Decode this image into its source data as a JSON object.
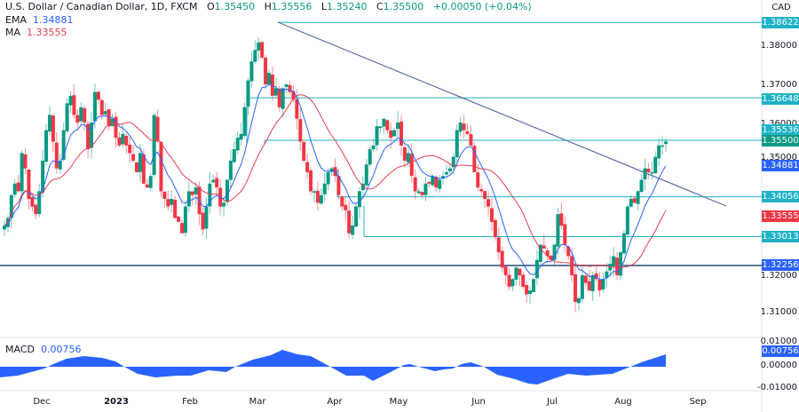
{
  "header": {
    "symbol": "U.S. Dollar / Canadian Dollar, 1D, FXCM",
    "open_label": "O",
    "open": "1.35450",
    "high_label": "H",
    "high": "1.35556",
    "low_label": "L",
    "low": "1.35240",
    "close_label": "C",
    "close": "1.35500",
    "change": "+0.00050 (+0.04%)"
  },
  "indicators": {
    "ema_label": "EMA",
    "ema_value": "1.34881",
    "ma_label": "MA",
    "ma_value": "1.33555",
    "macd_label": "MACD",
    "macd_value": "0.00756"
  },
  "currency": "CAD",
  "colors": {
    "up": "#089981",
    "down": "#f23645",
    "ema": "#2962ff",
    "ma": "#e04050",
    "level": "#1fb2c7",
    "support": "#5b7a99",
    "trendline": "#5b6ea0",
    "macd": "#2962ff",
    "close_tag": "#089981"
  },
  "price_axis": {
    "ticks": [
      "1.38000",
      "1.37000",
      "1.36000",
      "1.35000",
      "1.32000",
      "1.31000"
    ],
    "tags": [
      {
        "value": "1.38622",
        "color": "#1fb2c7"
      },
      {
        "value": "1.36648",
        "color": "#1fb2c7"
      },
      {
        "value": "1.35536",
        "color": "#1fb2c7"
      },
      {
        "value": "1.35500",
        "color": "#089981"
      },
      {
        "value": "1.34881",
        "color": "#2962ff"
      },
      {
        "value": "1.34056",
        "color": "#1fb2c7"
      },
      {
        "value": "1.33555",
        "color": "#f23645"
      },
      {
        "value": "1.33013",
        "color": "#1fb2c7"
      },
      {
        "value": "1.32256",
        "color": "#2962ff"
      }
    ]
  },
  "macd_axis": {
    "ticks": [
      "0.01000",
      "0.00000",
      "-0.01000"
    ],
    "tag": "0.00756"
  },
  "time_axis": [
    "Dec",
    "2023",
    "Feb",
    "Mar",
    "Apr",
    "May",
    "Jun",
    "Jul",
    "Aug",
    "Sep"
  ],
  "chart_data": [
    {
      "type": "candlestick",
      "title": "U.S. Dollar / Canadian Dollar, 1D, FXCM",
      "ylabel": "CAD",
      "ylim": [
        1.305,
        1.39
      ],
      "x_ticks": [
        "Dec",
        "2023",
        "Feb",
        "Mar",
        "Apr",
        "May",
        "Jun",
        "Jul",
        "Aug",
        "Sep"
      ],
      "last": {
        "open": 1.3545,
        "high": 1.35556,
        "low": 1.3524,
        "close": 1.355
      },
      "closes": [
        1.333,
        1.335,
        1.341,
        1.344,
        1.342,
        1.352,
        1.348,
        1.34,
        1.338,
        1.336,
        1.342,
        1.35,
        1.358,
        1.362,
        1.355,
        1.348,
        1.35,
        1.358,
        1.365,
        1.367,
        1.362,
        1.36,
        1.364,
        1.36,
        1.353,
        1.36,
        1.368,
        1.366,
        1.362,
        1.363,
        1.359,
        1.361,
        1.356,
        1.354,
        1.357,
        1.354,
        1.352,
        1.35,
        1.347,
        1.352,
        1.344,
        1.343,
        1.346,
        1.362,
        1.355,
        1.342,
        1.34,
        1.338,
        1.34,
        1.335,
        1.334,
        1.331,
        1.338,
        1.342,
        1.341,
        1.343,
        1.336,
        1.332,
        1.338,
        1.344,
        1.345,
        1.343,
        1.338,
        1.339,
        1.345,
        1.35,
        1.353,
        1.356,
        1.357,
        1.364,
        1.371,
        1.376,
        1.379,
        1.381,
        1.377,
        1.37,
        1.373,
        1.367,
        1.369,
        1.364,
        1.369,
        1.37,
        1.368,
        1.366,
        1.361,
        1.355,
        1.35,
        1.347,
        1.342,
        1.342,
        1.339,
        1.341,
        1.344,
        1.347,
        1.348,
        1.346,
        1.341,
        1.338,
        1.337,
        1.331,
        1.333,
        1.338,
        1.342,
        1.344,
        1.349,
        1.353,
        1.354,
        1.359,
        1.359,
        1.361,
        1.358,
        1.356,
        1.358,
        1.36,
        1.354,
        1.35,
        1.352,
        1.346,
        1.342,
        1.342,
        1.341,
        1.344,
        1.344,
        1.346,
        1.343,
        1.345,
        1.346,
        1.347,
        1.348,
        1.351,
        1.358,
        1.36,
        1.358,
        1.357,
        1.354,
        1.347,
        1.343,
        1.342,
        1.34,
        1.338,
        1.334,
        1.33,
        1.326,
        1.322,
        1.32,
        1.317,
        1.319,
        1.322,
        1.32,
        1.317,
        1.315,
        1.316,
        1.319,
        1.324,
        1.328,
        1.327,
        1.325,
        1.324,
        1.328,
        1.336,
        1.333,
        1.328,
        1.325,
        1.32,
        1.313,
        1.314,
        1.32,
        1.318,
        1.316,
        1.32,
        1.319,
        1.316,
        1.319,
        1.321,
        1.323,
        1.325,
        1.32,
        1.326,
        1.331,
        1.338,
        1.34,
        1.339,
        1.342,
        1.345,
        1.348,
        1.347,
        1.347,
        1.351,
        1.354,
        1.354,
        1.355
      ]
    },
    {
      "type": "area",
      "title": "MACD",
      "current": 0.00756,
      "ylim": [
        -0.01,
        0.01
      ],
      "shape": "oscillates around zero: negative Nov-Dec, positive mid-Dec to early Jan, negative Jan-Feb, peak positive mid-Mar, negative Apr, small positive May, negative Jun-Jul (trough early Jul), rising positive Aug to 0.00756"
    }
  ],
  "levels": [
    {
      "price": "1.38622",
      "label": "resistance"
    },
    {
      "price": "1.36648",
      "label": "resistance"
    },
    {
      "price": "1.35536",
      "label": "resistance"
    },
    {
      "price": "1.34056",
      "label": "support"
    },
    {
      "price": "1.33013",
      "label": "support"
    },
    {
      "price": "1.32256",
      "label": "support"
    }
  ]
}
